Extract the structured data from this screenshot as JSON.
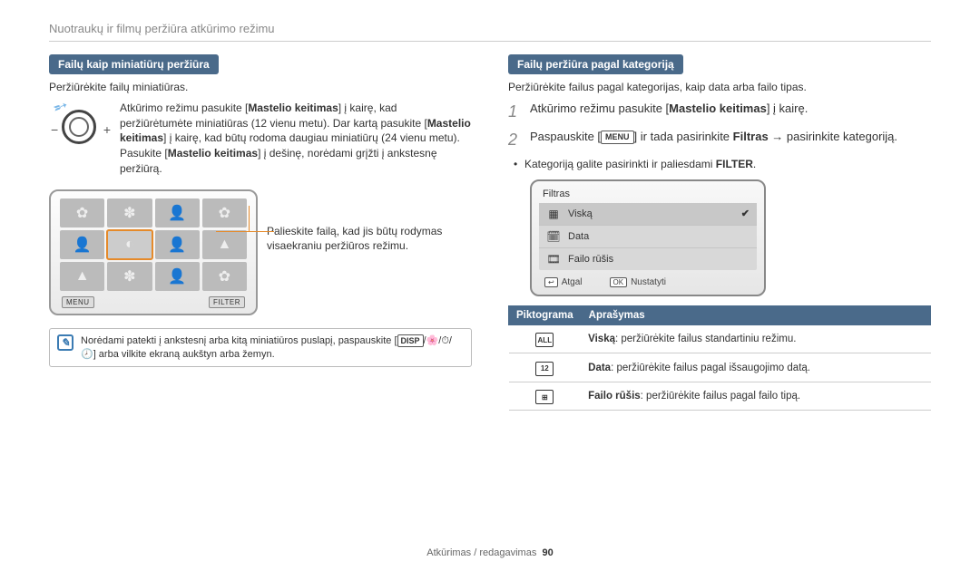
{
  "header": {
    "title": "Nuotraukų ir filmų peržiūra atkūrimo režimu"
  },
  "left": {
    "tab": "Failų kaip miniatiūrų peržiūra",
    "intro": "Peržiūrėkite failų miniatiūras.",
    "dial_text_parts": {
      "p1": "Atkūrimo režimu pasukite [",
      "b1": "Mastelio keitimas",
      "p2": "] į kairę, kad peržiūrėtumėte miniatiūras (12 vienu metu). Dar kartą pasukite [",
      "b2": "Mastelio keitimas",
      "p3": "] į kairę, kad būtų rodoma daugiau miniatiūrų (24 vienu metu). Pasukite [",
      "b3": "Mastelio keitimas",
      "p4": "] į dešinę, norėdami grįžti į ankstesnę peržiūrą."
    },
    "thumb_footer": {
      "menu": "MENU",
      "filter": "FILTER"
    },
    "callout": "Palieskite failą, kad jis būtų rodymas visaekraniu peržiūros režimu.",
    "note_parts": {
      "p1": "Norėdami patekti į ankstesnį arba kitą miniatiūros puslapį, paspauskite [",
      "disp": "DISP",
      "p2": "/🌸/⏱/🕗] arba vilkite ekraną aukštyn arba žemyn."
    }
  },
  "right": {
    "tab": "Failų peržiūra pagal kategoriją",
    "intro": "Peržiūrėkite failus pagal kategorijas, kaip data arba failo tipas.",
    "step1": {
      "pre": "Atkūrimo režimu pasukite [",
      "b": "Mastelio keitimas",
      "post": "] į kairę."
    },
    "step2": {
      "pre": "Paspauskite [",
      "menu": "MENU",
      "mid": "] ir tada pasirinkite ",
      "b": "Filtras",
      "post": " → pasirinkite kategoriją."
    },
    "bullet_parts": {
      "p1": "Kategoriją galite pasirinkti ir paliesdami ",
      "b": "FILTER",
      "p2": "."
    },
    "filter_panel": {
      "title": "Filtras",
      "items": [
        {
          "label": "Viską",
          "selected": true
        },
        {
          "label": "Data",
          "selected": false
        },
        {
          "label": "Failo rūšis",
          "selected": false
        }
      ],
      "footer": {
        "back_key": "↩",
        "back": "Atgal",
        "ok_key": "OK",
        "ok": "Nustatyti"
      }
    },
    "table": {
      "h1": "Piktograma",
      "h2": "Aprašymas",
      "rows": [
        {
          "icon": "ALL",
          "b": "Viską",
          "t": ": peržiūrėkite failus standartiniu režimu."
        },
        {
          "icon": "12",
          "b": "Data",
          "t": ": peržiūrėkite failus pagal išsaugojimo datą."
        },
        {
          "icon": "⊞",
          "b": "Failo rūšis",
          "t": ": peržiūrėkite failus pagal failo tipą."
        }
      ]
    }
  },
  "footer": {
    "section": "Atkūrimas / redagavimas",
    "page": "90"
  },
  "colors": {
    "tab_bg": "#4a6a8a",
    "accent": "#e58a2a",
    "note_border": "#3b7bb3",
    "muted": "#888888"
  }
}
